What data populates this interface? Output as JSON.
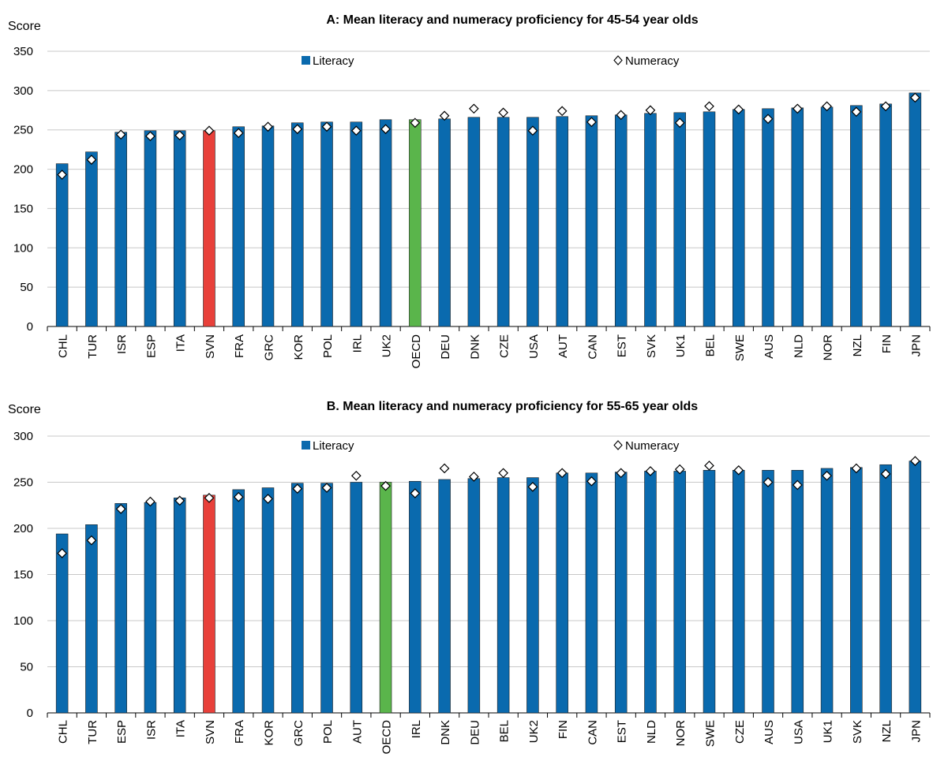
{
  "chart_data": [
    {
      "type": "bar",
      "title": "A: Mean literacy and numeracy proficiency for 45-54 year olds",
      "ylabel": "Score",
      "ylim": [
        0,
        350
      ],
      "yticks": [
        0,
        50,
        100,
        150,
        200,
        250,
        300,
        350
      ],
      "grid": true,
      "legend": "top",
      "categories": [
        "CHL",
        "TUR",
        "ISR",
        "ESP",
        "ITA",
        "SVN",
        "FRA",
        "GRC",
        "KOR",
        "POL",
        "IRL",
        "UK2",
        "OECD",
        "DEU",
        "DNK",
        "CZE",
        "USA",
        "AUT",
        "CAN",
        "EST",
        "SVK",
        "UK1",
        "BEL",
        "SWE",
        "AUS",
        "NLD",
        "NOR",
        "NZL",
        "FIN",
        "JPN"
      ],
      "highlight": {
        "SVN": "#e8403a",
        "OECD": "#5ab54b"
      },
      "series": [
        {
          "name": "Literacy",
          "kind": "bar",
          "color": "#0a6aae",
          "values": [
            207,
            222,
            247,
            249,
            249,
            249,
            254,
            255,
            259,
            260,
            260,
            263,
            263,
            264,
            266,
            266,
            266,
            267,
            268,
            269,
            271,
            272,
            273,
            276,
            277,
            278,
            279,
            281,
            283,
            297
          ]
        },
        {
          "name": "Numeracy",
          "kind": "marker",
          "color": "#ffffff",
          "values": [
            193,
            212,
            244,
            242,
            243,
            249,
            246,
            254,
            251,
            254,
            249,
            251,
            259,
            268,
            277,
            272,
            249,
            274,
            260,
            269,
            275,
            259,
            280,
            276,
            264,
            277,
            280,
            273,
            280,
            291
          ]
        }
      ]
    },
    {
      "type": "bar",
      "title": "B. Mean literacy and numeracy proficiency for 55-65 year olds",
      "ylabel": "Score",
      "ylim": [
        0,
        300
      ],
      "yticks": [
        0,
        50,
        100,
        150,
        200,
        250,
        300
      ],
      "grid": true,
      "legend": "top",
      "categories": [
        "CHL",
        "TUR",
        "ESP",
        "ISR",
        "ITA",
        "SVN",
        "FRA",
        "KOR",
        "GRC",
        "POL",
        "AUT",
        "OECD",
        "IRL",
        "DNK",
        "DEU",
        "BEL",
        "UK2",
        "FIN",
        "CAN",
        "EST",
        "NLD",
        "NOR",
        "SWE",
        "CZE",
        "AUS",
        "USA",
        "UK1",
        "SVK",
        "NZL",
        "JPN"
      ],
      "highlight": {
        "SVN": "#e8403a",
        "OECD": "#5ab54b"
      },
      "series": [
        {
          "name": "Literacy",
          "kind": "bar",
          "color": "#0a6aae",
          "values": [
            194,
            204,
            227,
            228,
            233,
            236,
            242,
            244,
            249,
            249,
            250,
            250,
            251,
            253,
            254,
            255,
            255,
            260,
            260,
            261,
            262,
            262,
            263,
            263,
            263,
            263,
            265,
            266,
            269,
            273
          ]
        },
        {
          "name": "Numeracy",
          "kind": "marker",
          "color": "#ffffff",
          "values": [
            173,
            187,
            221,
            229,
            230,
            233,
            234,
            232,
            243,
            244,
            257,
            246,
            238,
            265,
            256,
            260,
            245,
            260,
            251,
            260,
            262,
            264,
            268,
            263,
            250,
            247,
            257,
            265,
            259,
            273
          ]
        }
      ]
    }
  ]
}
